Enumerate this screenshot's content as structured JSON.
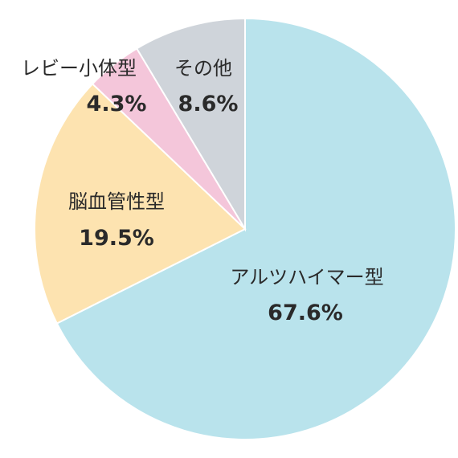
{
  "chart_data": {
    "type": "pie",
    "categories": [
      "アルツハイマー型",
      "脳血管性型",
      "レビー小体型",
      "その他"
    ],
    "values": [
      67.6,
      19.5,
      4.3,
      8.6
    ],
    "value_labels": [
      "67.6%",
      "19.5%",
      "4.3%",
      "8.6%"
    ],
    "colors": [
      "#b9e3ec",
      "#fde3b0",
      "#f4c6da",
      "#cfd4da"
    ],
    "start": "12 o'clock",
    "direction": "clockwise",
    "legend": "none"
  }
}
